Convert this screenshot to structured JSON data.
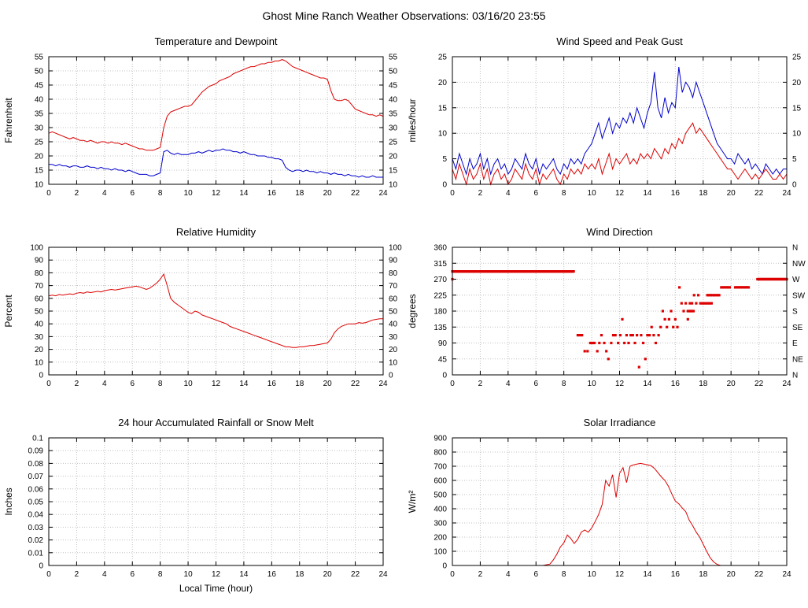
{
  "page_title": "Ghost Mine Ranch Weather Observations: 03/16/20 23:55",
  "colors": {
    "red": "#dd0000",
    "blue": "#0000cc",
    "grid": "#c0c0c0",
    "axis": "#000000"
  },
  "x_axis": {
    "min": 0,
    "max": 24,
    "tick_step": 2
  },
  "chart_data": [
    {
      "name": "temperature-dewpoint",
      "type": "line",
      "title": "Temperature and Dewpoint",
      "ylabel": "Fahrenheit",
      "xlabel": "",
      "ylim": [
        10,
        55
      ],
      "ytick_step": 5,
      "right_labels": "mirror",
      "grid": true,
      "series": [
        {
          "name": "Temperature",
          "color": "red",
          "x_start": 0,
          "x_step": 0.25,
          "values": [
            28,
            28.5,
            28,
            27.5,
            27,
            26.5,
            26,
            26.5,
            26,
            25.5,
            25.5,
            25,
            25.5,
            25,
            24.5,
            25,
            25,
            24.5,
            25,
            24.5,
            24.5,
            24,
            24.5,
            24,
            23.5,
            23,
            22.5,
            22.5,
            22,
            22,
            22,
            22.5,
            23,
            30,
            34,
            35.5,
            36,
            36.5,
            37,
            37.5,
            37.5,
            38,
            39.5,
            41,
            42.5,
            43.5,
            44.5,
            45,
            45.5,
            46.5,
            47,
            47.5,
            48,
            49,
            49.5,
            50,
            50.5,
            51,
            51.5,
            51.5,
            52,
            52.5,
            52.5,
            53,
            53,
            53.5,
            53.5,
            54,
            53.5,
            52.5,
            51.5,
            51,
            50.5,
            50,
            49.5,
            49,
            48.5,
            48,
            47.5,
            47.5,
            47,
            43,
            40,
            39.5,
            39.5,
            40,
            39.5,
            38,
            36.5,
            36,
            35.5,
            35,
            34.5,
            34.5,
            34,
            34.5,
            34
          ]
        },
        {
          "name": "Dewpoint",
          "color": "blue",
          "x_start": 0,
          "x_step": 0.25,
          "values": [
            17,
            17,
            16.5,
            17,
            16.5,
            16.5,
            16,
            16.5,
            16.5,
            16,
            16,
            16.5,
            16,
            16,
            15.5,
            16,
            15.5,
            15.5,
            15,
            15.5,
            15,
            15,
            14.5,
            15,
            14.5,
            14,
            13.5,
            13.5,
            13.5,
            13,
            13,
            13.5,
            14,
            21.5,
            22,
            21,
            20.5,
            21,
            20.5,
            20.5,
            20.5,
            21,
            21,
            21.5,
            21,
            21.5,
            22,
            21.5,
            22,
            22,
            22.5,
            22,
            22,
            21.5,
            21.5,
            21,
            21.5,
            21,
            20.5,
            20.5,
            20,
            20,
            20,
            19.5,
            19.5,
            19,
            19,
            18.5,
            16,
            15,
            14.5,
            15,
            15,
            14.5,
            15,
            14.5,
            14.5,
            14,
            14.5,
            14,
            14,
            13.5,
            14,
            13.5,
            13.5,
            13,
            13.5,
            13,
            13,
            12.5,
            13,
            12.5,
            12.5,
            13,
            12.5,
            12.5,
            12.5
          ]
        }
      ]
    },
    {
      "name": "wind-speed-gust",
      "type": "line",
      "title": "Wind Speed and Peak Gust",
      "ylabel": "miles/hour",
      "xlabel": "",
      "ylim": [
        0,
        25
      ],
      "ytick_step": 5,
      "right_labels": "mirror",
      "grid": true,
      "series": [
        {
          "name": "Peak Gust",
          "color": "blue",
          "x_start": 0,
          "x_step": 0.25,
          "values": [
            5,
            3,
            6,
            4,
            2,
            5,
            3,
            4,
            6,
            3,
            5,
            2,
            4,
            5,
            3,
            4,
            2,
            3,
            5,
            4,
            3,
            6,
            4,
            3,
            5,
            2,
            4,
            3,
            4,
            5,
            3,
            2,
            4,
            3,
            5,
            4,
            5,
            4,
            6,
            7,
            8,
            10,
            12,
            9,
            11,
            13,
            10,
            12,
            11,
            13,
            12,
            14,
            12,
            15,
            13,
            11,
            14,
            16,
            22,
            15,
            13,
            17,
            14,
            16,
            15,
            23,
            18,
            20,
            19,
            17,
            20,
            18,
            16,
            14,
            12,
            10,
            8,
            7,
            6,
            5,
            5,
            4,
            6,
            5,
            4,
            5,
            3,
            4,
            3,
            2,
            4,
            3,
            2,
            3,
            2,
            3,
            3
          ]
        },
        {
          "name": "Wind Speed",
          "color": "red",
          "x_start": 0,
          "x_step": 0.25,
          "values": [
            3,
            1,
            4,
            2,
            0,
            3,
            1,
            2,
            4,
            1,
            3,
            0,
            2,
            3,
            1,
            2,
            0,
            1,
            3,
            2,
            1,
            4,
            2,
            1,
            3,
            0,
            2,
            1,
            2,
            3,
            1,
            0,
            2,
            1,
            3,
            2,
            3,
            2,
            4,
            3,
            4,
            3,
            5,
            2,
            4,
            6,
            3,
            5,
            4,
            5,
            6,
            4,
            5,
            4,
            6,
            5,
            6,
            5,
            7,
            6,
            5,
            7,
            6,
            8,
            7,
            9,
            8,
            10,
            11,
            12,
            10,
            11,
            10,
            9,
            8,
            7,
            6,
            5,
            4,
            3,
            3,
            2,
            1,
            2,
            3,
            2,
            1,
            2,
            1,
            2,
            3,
            2,
            1,
            1,
            2,
            1,
            2
          ]
        }
      ]
    },
    {
      "name": "relative-humidity",
      "type": "line",
      "title": "Relative Humidity",
      "ylabel": "Percent",
      "xlabel": "",
      "ylim": [
        0,
        100
      ],
      "ytick_step": 10,
      "right_labels": "mirror",
      "grid": true,
      "series": [
        {
          "name": "Relative Humidity",
          "color": "red",
          "x_start": 0,
          "x_step": 0.25,
          "values": [
            62,
            62.5,
            62,
            63,
            62.5,
            63,
            63.5,
            63,
            64,
            64.5,
            64,
            65,
            64.5,
            65,
            65.5,
            65,
            66,
            66.5,
            67,
            66.5,
            67,
            67.5,
            68,
            68.5,
            69,
            69.5,
            69,
            68,
            67,
            68,
            70,
            72,
            75,
            79,
            70,
            60,
            57,
            55,
            53,
            51,
            49,
            48,
            50,
            49,
            47,
            46,
            45,
            44,
            43,
            42,
            41,
            40,
            38,
            37,
            36,
            35,
            34,
            33,
            32,
            31,
            30,
            29,
            28,
            27,
            26,
            25,
            24,
            23,
            22,
            22,
            21.5,
            21.5,
            22,
            22,
            22.5,
            23,
            23,
            23.5,
            24,
            24.5,
            25,
            28,
            33,
            36,
            38,
            39,
            40,
            40,
            40,
            41,
            40.5,
            41,
            42,
            43,
            43.5,
            44,
            44
          ]
        }
      ]
    },
    {
      "name": "wind-direction",
      "type": "scatter",
      "title": "Wind Direction",
      "ylabel": "degrees",
      "xlabel": "",
      "ylim": [
        0,
        360
      ],
      "ytick_step": 45,
      "right_labels": [
        "N",
        "NW",
        "W",
        "SW",
        "S",
        "SE",
        "E",
        "NE",
        "N"
      ],
      "grid": true,
      "series": [
        {
          "name": "Wind Direction",
          "color": "red",
          "runs": [
            {
              "x0": 0.0,
              "x1": 8.7,
              "step": 0.05,
              "y": 292
            },
            {
              "x0": 16.9,
              "x1": 17.3,
              "step": 0.1,
              "y": 180
            },
            {
              "x0": 17.9,
              "x1": 18.6,
              "step": 0.1,
              "y": 202
            },
            {
              "x0": 18.3,
              "x1": 19.0,
              "step": 0.12,
              "y": 225
            },
            {
              "x0": 19.3,
              "x1": 19.9,
              "step": 0.1,
              "y": 247
            },
            {
              "x0": 20.3,
              "x1": 21.3,
              "step": 0.08,
              "y": 247
            },
            {
              "x0": 21.9,
              "x1": 24.0,
              "step": 0.05,
              "y": 270
            }
          ],
          "points": [
            [
              0,
              270
            ],
            [
              9.0,
              112
            ],
            [
              9.15,
              112
            ],
            [
              9.3,
              112
            ],
            [
              9.5,
              67
            ],
            [
              9.7,
              67
            ],
            [
              9.9,
              90
            ],
            [
              10.05,
              90
            ],
            [
              10.2,
              90
            ],
            [
              10.4,
              67
            ],
            [
              10.55,
              90
            ],
            [
              10.7,
              112
            ],
            [
              10.9,
              90
            ],
            [
              11.05,
              67
            ],
            [
              11.2,
              45
            ],
            [
              11.4,
              90
            ],
            [
              11.55,
              112
            ],
            [
              11.7,
              112
            ],
            [
              11.9,
              90
            ],
            [
              12.05,
              112
            ],
            [
              12.2,
              157
            ],
            [
              12.35,
              90
            ],
            [
              12.5,
              112
            ],
            [
              12.65,
              90
            ],
            [
              12.8,
              112
            ],
            [
              12.95,
              112
            ],
            [
              13.1,
              90
            ],
            [
              13.25,
              112
            ],
            [
              13.4,
              22
            ],
            [
              13.55,
              112
            ],
            [
              13.7,
              90
            ],
            [
              13.85,
              45
            ],
            [
              14.0,
              112
            ],
            [
              14.15,
              112
            ],
            [
              14.3,
              135
            ],
            [
              14.45,
              112
            ],
            [
              14.6,
              90
            ],
            [
              14.8,
              112
            ],
            [
              14.95,
              135
            ],
            [
              15.1,
              180
            ],
            [
              15.25,
              157
            ],
            [
              15.4,
              135
            ],
            [
              15.55,
              157
            ],
            [
              15.7,
              180
            ],
            [
              15.85,
              135
            ],
            [
              16.0,
              157
            ],
            [
              16.15,
              135
            ],
            [
              16.3,
              247
            ],
            [
              16.45,
              202
            ],
            [
              16.6,
              180
            ],
            [
              16.75,
              202
            ],
            [
              16.9,
              157
            ],
            [
              17.05,
              202
            ],
            [
              17.2,
              202
            ],
            [
              17.35,
              225
            ],
            [
              17.5,
              202
            ],
            [
              17.65,
              225
            ],
            [
              17.8,
              202
            ],
            [
              19.05,
              225
            ],
            [
              19.15,
              225
            ]
          ]
        }
      ]
    },
    {
      "name": "rainfall",
      "type": "line",
      "title": "24 hour Accumulated Rainfall or Snow Melt",
      "ylabel": "Inches",
      "xlabel": "Local Time (hour)",
      "ylim": [
        0,
        0.1
      ],
      "ytick_step": 0.01,
      "right_labels": null,
      "grid": true,
      "series": [
        {
          "name": "Rainfall",
          "color": "red",
          "x_start": 0,
          "x_step": 1,
          "values": [
            0,
            0,
            0,
            0,
            0,
            0,
            0,
            0,
            0,
            0,
            0,
            0,
            0,
            0,
            0,
            0,
            0,
            0,
            0,
            0,
            0,
            0,
            0,
            0,
            0
          ]
        }
      ]
    },
    {
      "name": "solar-irradiance",
      "type": "line",
      "title": "Solar Irradiance",
      "ylabel": "W/m²",
      "xlabel": "",
      "ylim": [
        0,
        900
      ],
      "ytick_step": 100,
      "right_labels": null,
      "grid": true,
      "series": [
        {
          "name": "Solar Irradiance",
          "color": "red",
          "x_start": 0,
          "x_step": 0.25,
          "values": [
            0,
            0,
            0,
            0,
            0,
            0,
            0,
            0,
            0,
            0,
            0,
            0,
            0,
            0,
            0,
            0,
            0,
            0,
            0,
            0,
            0,
            0,
            0,
            0,
            0,
            0,
            0,
            5,
            10,
            40,
            80,
            130,
            160,
            215,
            190,
            155,
            185,
            235,
            250,
            235,
            265,
            310,
            360,
            430,
            600,
            560,
            640,
            480,
            650,
            690,
            585,
            700,
            710,
            715,
            720,
            715,
            710,
            705,
            685,
            655,
            625,
            600,
            560,
            505,
            455,
            435,
            405,
            380,
            320,
            280,
            235,
            200,
            150,
            100,
            55,
            25,
            8,
            0,
            0,
            0,
            0,
            0,
            0,
            0,
            0,
            0,
            0,
            0,
            0,
            0,
            0,
            0,
            0,
            0,
            0,
            0,
            0
          ]
        }
      ]
    }
  ]
}
